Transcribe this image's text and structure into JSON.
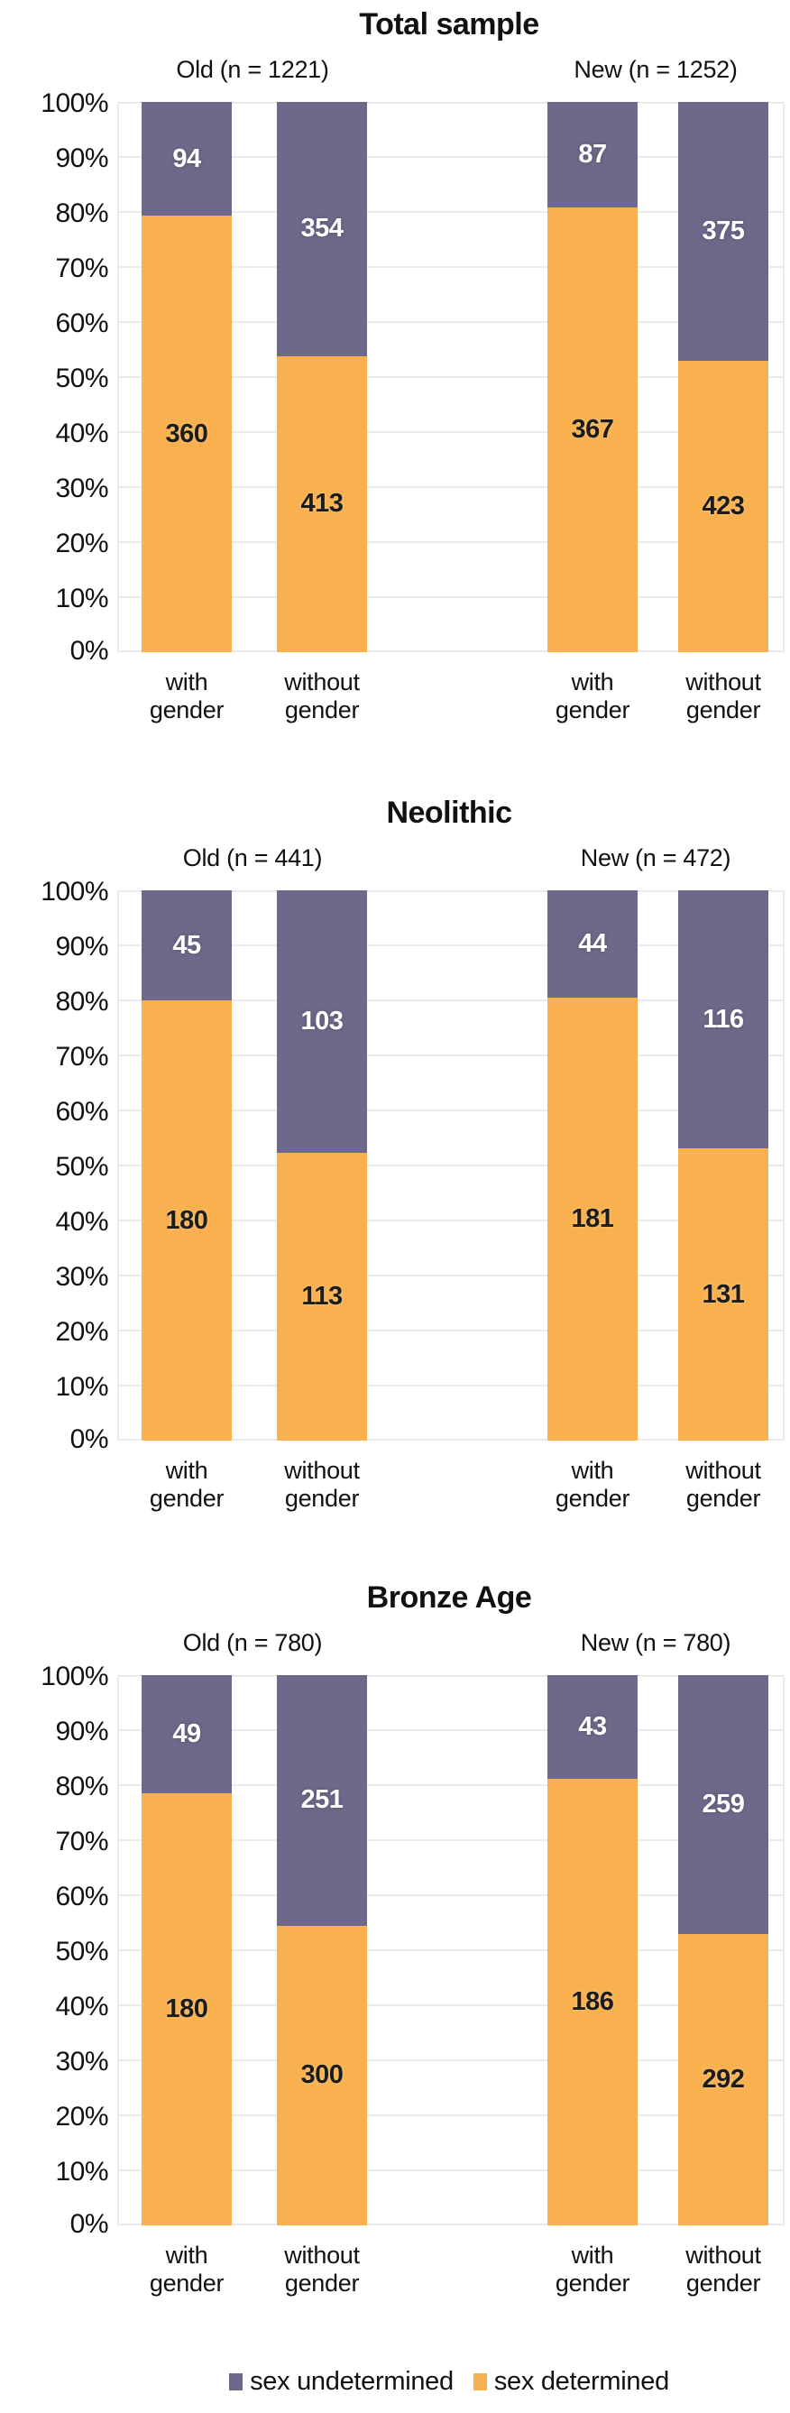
{
  "colors": {
    "determined": "#F8B14E",
    "undetermined": "#6E698A",
    "grid": "#EBEBEE",
    "value_on_determined": "#1C1C1C",
    "value_on_undetermined": "#FFFFFF"
  },
  "y_ticks": [
    "100%",
    "90%",
    "80%",
    "70%",
    "60%",
    "50%",
    "40%",
    "30%",
    "20%",
    "10%",
    "0%"
  ],
  "legend": {
    "undetermined_label": "sex undetermined",
    "determined_label": "sex determined"
  },
  "chart_data": [
    {
      "type": "bar",
      "stacked": true,
      "percent_scale": true,
      "title": "Total sample",
      "ylim": [
        "0%",
        "100%"
      ],
      "grid": true,
      "legend_position": "bottom",
      "series_names": [
        "sex determined",
        "sex undetermined"
      ],
      "groups": [
        {
          "label": "Old (n = 1221)",
          "bars": [
            {
              "xlabel1": "with",
              "xlabel2": "gender",
              "determined": 360,
              "undetermined": 94,
              "det_pct": 79.3,
              "undet_pct": 20.7
            },
            {
              "xlabel1": "without",
              "xlabel2": "gender",
              "determined": 413,
              "undetermined": 354,
              "det_pct": 53.85,
              "undet_pct": 46.15
            }
          ]
        },
        {
          "label": "New (n = 1252)",
          "bars": [
            {
              "xlabel1": "with",
              "xlabel2": "gender",
              "determined": 367,
              "undetermined": 87,
              "det_pct": 80.84,
              "undet_pct": 19.16
            },
            {
              "xlabel1": "without",
              "xlabel2": "gender",
              "determined": 423,
              "undetermined": 375,
              "det_pct": 53.01,
              "undet_pct": 46.99
            }
          ]
        }
      ]
    },
    {
      "type": "bar",
      "stacked": true,
      "percent_scale": true,
      "title": "Neolithic",
      "ylim": [
        "0%",
        "100%"
      ],
      "grid": true,
      "legend_position": "bottom",
      "series_names": [
        "sex determined",
        "sex undetermined"
      ],
      "groups": [
        {
          "label": "Old (n = 441)",
          "bars": [
            {
              "xlabel1": "with",
              "xlabel2": "gender",
              "determined": 180,
              "undetermined": 45,
              "det_pct": 80.0,
              "undet_pct": 20.0
            },
            {
              "xlabel1": "without",
              "xlabel2": "gender",
              "determined": 113,
              "undetermined": 103,
              "det_pct": 52.31,
              "undet_pct": 47.69
            }
          ]
        },
        {
          "label": "New (n = 472)",
          "bars": [
            {
              "xlabel1": "with",
              "xlabel2": "gender",
              "determined": 181,
              "undetermined": 44,
              "det_pct": 80.44,
              "undet_pct": 19.56
            },
            {
              "xlabel1": "without",
              "xlabel2": "gender",
              "determined": 131,
              "undetermined": 116,
              "det_pct": 53.04,
              "undet_pct": 46.96
            }
          ]
        }
      ]
    },
    {
      "type": "bar",
      "stacked": true,
      "percent_scale": true,
      "title": "Bronze Age",
      "ylim": [
        "0%",
        "100%"
      ],
      "grid": true,
      "legend_position": "bottom",
      "series_names": [
        "sex determined",
        "sex undetermined"
      ],
      "groups": [
        {
          "label": "Old (n = 780)",
          "bars": [
            {
              "xlabel1": "with",
              "xlabel2": "gender",
              "determined": 180,
              "undetermined": 49,
              "det_pct": 78.6,
              "undet_pct": 21.4
            },
            {
              "xlabel1": "without",
              "xlabel2": "gender",
              "determined": 300,
              "undetermined": 251,
              "det_pct": 54.45,
              "undet_pct": 45.55
            }
          ]
        },
        {
          "label": "New (n = 780)",
          "bars": [
            {
              "xlabel1": "with",
              "xlabel2": "gender",
              "determined": 186,
              "undetermined": 43,
              "det_pct": 81.22,
              "undet_pct": 18.78
            },
            {
              "xlabel1": "without",
              "xlabel2": "gender",
              "determined": 292,
              "undetermined": 259,
              "det_pct": 52.99,
              "undet_pct": 47.01
            }
          ]
        }
      ]
    }
  ]
}
